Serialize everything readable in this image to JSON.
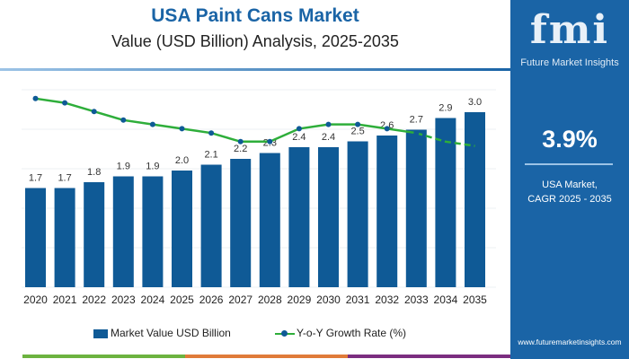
{
  "header": {
    "title": "USA Paint Cans Market",
    "subtitle": "Value (USD Billion) Analysis, 2025-2035"
  },
  "panel": {
    "logo_text": "fmi",
    "logo_sub": "Future Market Insights",
    "cagr_value": "3.9%",
    "cagr_label_line1": "USA Market,",
    "cagr_label_line2": "CAGR 2025 - 2035",
    "url": "www.futuremarketinsights.com"
  },
  "colors": {
    "bar": "#0f5a96",
    "line": "#2eae3a",
    "marker": "#0f5a96",
    "panel": "#1a64a6",
    "strip": [
      "#6cb33f",
      "#e07b39",
      "#7b2d80"
    ]
  },
  "chart_data": {
    "type": "bar+line",
    "categories": [
      "2020",
      "2021",
      "2022",
      "2023",
      "2024",
      "2025",
      "2026",
      "2027",
      "2028",
      "2029",
      "2030",
      "2031",
      "2032",
      "2033",
      "2034",
      "2035"
    ],
    "series": [
      {
        "name": "Market Value USD Billion",
        "type": "bar",
        "values": [
          1.7,
          1.7,
          1.8,
          1.9,
          1.9,
          2.0,
          2.1,
          2.2,
          2.3,
          2.4,
          2.4,
          2.5,
          2.6,
          2.7,
          2.9,
          3.0
        ],
        "labels": [
          "1.7",
          "1.7",
          "1.8",
          "1.9",
          "1.9",
          "2.0",
          "2.1",
          "2.2",
          "2.3",
          "2.4",
          "2.4",
          "2.5",
          "2.6",
          "2.7",
          "2.9",
          "3.0"
        ]
      },
      {
        "name": "Y-o-Y Growth Rate (%)",
        "type": "line",
        "values": [
          4.9,
          4.8,
          4.6,
          4.4,
          4.3,
          4.2,
          4.1,
          3.9,
          3.9,
          4.2,
          4.3,
          4.3,
          4.2,
          4.1,
          3.9,
          3.8
        ],
        "dashed_from": "2033"
      }
    ],
    "ylim": [
      0,
      3.2
    ],
    "grid": true,
    "legend": "bottom"
  }
}
